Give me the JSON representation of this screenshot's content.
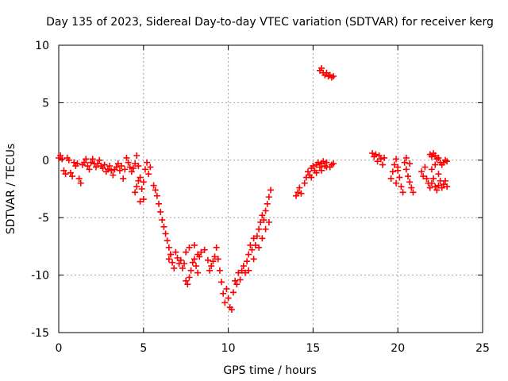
{
  "chart_data": {
    "type": "scatter",
    "title": "Day 135 of 2023, Sidereal Day-to-day VTEC variation (SDTVAR) for receiver kerg",
    "xlabel": "GPS time / hours",
    "ylabel": "SDTVAR / TECUs",
    "xlim": [
      0,
      25
    ],
    "ylim": [
      -15,
      10
    ],
    "x_ticks": [
      0,
      5,
      10,
      15,
      20,
      25
    ],
    "x_tick_labels": [
      "0",
      "5",
      "10",
      "15",
      "20",
      "25"
    ],
    "y_ticks": [
      10,
      5,
      0,
      -5,
      -10,
      -15
    ],
    "y_tick_labels": [
      "10",
      "5",
      "0",
      "-5",
      "-10",
      "-15"
    ],
    "grid": true,
    "marker": "+",
    "series_color": "#ff0000",
    "series": [
      {
        "name": "SDTVAR",
        "points": [
          [
            0.0,
            0.2
          ],
          [
            0.1,
            0.4
          ],
          [
            0.2,
            0.1
          ],
          [
            0.3,
            -0.9
          ],
          [
            0.4,
            -1.2
          ],
          [
            0.5,
            0.2
          ],
          [
            0.6,
            0.0
          ],
          [
            0.7,
            -1.1
          ],
          [
            0.8,
            -1.4
          ],
          [
            0.9,
            -0.2
          ],
          [
            1.0,
            -0.5
          ],
          [
            1.1,
            -0.3
          ],
          [
            1.2,
            -1.6
          ],
          [
            1.3,
            -2.0
          ],
          [
            1.4,
            -0.4
          ],
          [
            1.5,
            -0.2
          ],
          [
            1.6,
            0.1
          ],
          [
            1.7,
            -0.5
          ],
          [
            1.8,
            -0.8
          ],
          [
            1.9,
            -0.2
          ],
          [
            2.0,
            0.1
          ],
          [
            2.1,
            -0.3
          ],
          [
            2.2,
            -0.6
          ],
          [
            2.3,
            -0.3
          ],
          [
            2.4,
            0.0
          ],
          [
            2.5,
            -0.5
          ],
          [
            2.6,
            -0.7
          ],
          [
            2.7,
            -0.4
          ],
          [
            2.8,
            -1.0
          ],
          [
            2.9,
            -0.8
          ],
          [
            3.0,
            -0.5
          ],
          [
            3.1,
            -0.9
          ],
          [
            3.2,
            -1.3
          ],
          [
            3.3,
            -0.8
          ],
          [
            3.4,
            -0.6
          ],
          [
            3.5,
            -0.3
          ],
          [
            3.6,
            -0.9
          ],
          [
            3.7,
            -0.5
          ],
          [
            3.8,
            -1.6
          ],
          [
            3.9,
            -0.8
          ],
          [
            4.0,
            0.2
          ],
          [
            4.1,
            -0.2
          ],
          [
            4.2,
            -0.6
          ],
          [
            4.3,
            -1.0
          ],
          [
            4.4,
            -0.7
          ],
          [
            4.5,
            -0.3
          ],
          [
            4.6,
            0.4
          ],
          [
            4.7,
            -0.5
          ],
          [
            4.8,
            -1.5
          ],
          [
            4.9,
            -2.5
          ],
          [
            5.0,
            -3.4
          ],
          [
            5.1,
            -0.8
          ],
          [
            5.2,
            -0.2
          ],
          [
            5.3,
            -1.2
          ],
          [
            5.4,
            -0.6
          ],
          [
            4.5,
            -2.8
          ],
          [
            4.6,
            -2.3
          ],
          [
            4.7,
            -1.8
          ],
          [
            4.8,
            -3.6
          ],
          [
            5.0,
            -1.9
          ],
          [
            5.6,
            -2.2
          ],
          [
            5.7,
            -2.6
          ],
          [
            5.8,
            -3.1
          ],
          [
            5.9,
            -3.8
          ],
          [
            6.0,
            -4.5
          ],
          [
            6.1,
            -5.2
          ],
          [
            6.2,
            -5.8
          ],
          [
            6.3,
            -6.4
          ],
          [
            6.4,
            -7.0
          ],
          [
            6.5,
            -7.6
          ],
          [
            6.6,
            -8.2
          ],
          [
            6.7,
            -8.9
          ],
          [
            6.8,
            -9.4
          ],
          [
            6.9,
            -8.0
          ],
          [
            6.5,
            -8.6
          ],
          [
            6.6,
            -8.2
          ],
          [
            7.0,
            -8.5
          ],
          [
            7.1,
            -9.0
          ],
          [
            7.2,
            -8.7
          ],
          [
            7.3,
            -9.4
          ],
          [
            7.4,
            -9.0
          ],
          [
            7.5,
            -10.5
          ],
          [
            7.6,
            -10.8
          ],
          [
            7.7,
            -10.2
          ],
          [
            7.8,
            -9.6
          ],
          [
            7.9,
            -8.9
          ],
          [
            8.0,
            -8.6
          ],
          [
            8.1,
            -9.2
          ],
          [
            8.2,
            -9.8
          ],
          [
            8.3,
            -8.4
          ],
          [
            7.5,
            -8.0
          ],
          [
            7.7,
            -7.6
          ],
          [
            8.0,
            -7.4
          ],
          [
            8.2,
            -8.2
          ],
          [
            8.4,
            -8.0
          ],
          [
            8.6,
            -7.8
          ],
          [
            8.8,
            -8.7
          ],
          [
            8.9,
            -9.6
          ],
          [
            9.0,
            -9.2
          ],
          [
            9.1,
            -8.8
          ],
          [
            9.2,
            -8.4
          ],
          [
            9.3,
            -7.6
          ],
          [
            9.4,
            -8.6
          ],
          [
            9.5,
            -9.6
          ],
          [
            9.6,
            -10.6
          ],
          [
            9.7,
            -11.6
          ],
          [
            9.8,
            -12.4
          ],
          [
            9.9,
            -11.2
          ],
          [
            10.0,
            -12.0
          ],
          [
            10.1,
            -12.8
          ],
          [
            10.2,
            -13.0
          ],
          [
            10.3,
            -11.5
          ],
          [
            10.4,
            -10.5
          ],
          [
            10.5,
            -10.8
          ],
          [
            10.6,
            -9.8
          ],
          [
            10.7,
            -10.4
          ],
          [
            10.8,
            -9.6
          ],
          [
            10.9,
            -9.2
          ],
          [
            11.0,
            -9.8
          ],
          [
            11.1,
            -8.8
          ],
          [
            11.2,
            -8.2
          ],
          [
            11.3,
            -7.4
          ],
          [
            11.4,
            -7.8
          ],
          [
            11.5,
            -6.8
          ],
          [
            11.6,
            -7.4
          ],
          [
            11.7,
            -6.6
          ],
          [
            11.8,
            -6.0
          ],
          [
            11.9,
            -5.4
          ],
          [
            12.0,
            -4.8
          ],
          [
            12.1,
            -5.2
          ],
          [
            12.2,
            -4.4
          ],
          [
            12.3,
            -3.8
          ],
          [
            12.4,
            -3.2
          ],
          [
            12.5,
            -2.6
          ],
          [
            12.2,
            -6.0
          ],
          [
            12.4,
            -5.4
          ],
          [
            12.0,
            -6.8
          ],
          [
            11.8,
            -7.6
          ],
          [
            11.5,
            -8.6
          ],
          [
            11.2,
            -9.6
          ],
          [
            14.0,
            -3.1
          ],
          [
            14.1,
            -2.8
          ],
          [
            14.2,
            -2.4
          ],
          [
            14.3,
            -2.9
          ],
          [
            14.5,
            -2.0
          ],
          [
            14.6,
            -1.5
          ],
          [
            14.7,
            -1.0
          ],
          [
            14.8,
            -1.3
          ],
          [
            14.9,
            -0.7
          ],
          [
            15.0,
            -0.5
          ],
          [
            15.1,
            -0.9
          ],
          [
            15.2,
            -0.4
          ],
          [
            15.3,
            -0.2
          ],
          [
            15.4,
            -0.6
          ],
          [
            15.5,
            -0.3
          ],
          [
            15.6,
            -0.1
          ],
          [
            15.7,
            -0.5
          ],
          [
            15.8,
            -0.2
          ],
          [
            16.0,
            -0.6
          ],
          [
            16.1,
            -0.4
          ],
          [
            16.2,
            -0.3
          ],
          [
            14.9,
            -1.5
          ],
          [
            15.2,
            -1.1
          ],
          [
            15.5,
            -0.9
          ],
          [
            15.8,
            -0.6
          ],
          [
            15.4,
            7.8
          ],
          [
            15.5,
            8.0
          ],
          [
            15.6,
            7.6
          ],
          [
            15.7,
            7.4
          ],
          [
            15.8,
            7.6
          ],
          [
            15.9,
            7.3
          ],
          [
            16.0,
            7.4
          ],
          [
            16.1,
            7.2
          ],
          [
            16.2,
            7.3
          ],
          [
            18.5,
            0.6
          ],
          [
            18.6,
            0.3
          ],
          [
            18.7,
            0.5
          ],
          [
            18.8,
            -0.1
          ],
          [
            18.9,
            0.4
          ],
          [
            19.0,
            0.1
          ],
          [
            19.1,
            -0.4
          ],
          [
            19.2,
            0.2
          ],
          [
            19.6,
            -1.6
          ],
          [
            19.7,
            -1.0
          ],
          [
            19.8,
            -0.4
          ],
          [
            19.9,
            0.1
          ],
          [
            20.0,
            -0.6
          ],
          [
            20.1,
            -1.5
          ],
          [
            20.2,
            -2.3
          ],
          [
            20.3,
            -2.8
          ],
          [
            19.9,
            -2.0
          ],
          [
            20.0,
            -0.9
          ],
          [
            20.4,
            -0.2
          ],
          [
            20.5,
            -0.8
          ],
          [
            20.6,
            -1.4
          ],
          [
            20.7,
            -1.9
          ],
          [
            20.8,
            -2.4
          ],
          [
            20.9,
            -2.8
          ],
          [
            20.5,
            0.2
          ],
          [
            20.7,
            -0.3
          ],
          [
            21.4,
            -1.0
          ],
          [
            21.5,
            -1.4
          ],
          [
            21.6,
            -0.6
          ],
          [
            21.7,
            -1.6
          ],
          [
            21.8,
            -2.0
          ],
          [
            21.9,
            -2.4
          ],
          [
            22.0,
            -2.0
          ],
          [
            22.1,
            -1.6
          ],
          [
            22.2,
            -2.3
          ],
          [
            22.3,
            -2.6
          ],
          [
            22.4,
            -2.2
          ],
          [
            22.5,
            -1.8
          ],
          [
            22.6,
            -2.4
          ],
          [
            22.7,
            -2.1
          ],
          [
            22.8,
            -1.8
          ],
          [
            22.9,
            -2.3
          ],
          [
            21.9,
            0.5
          ],
          [
            22.0,
            0.3
          ],
          [
            22.1,
            0.6
          ],
          [
            22.2,
            0.4
          ],
          [
            22.3,
            0.1
          ],
          [
            22.4,
            0.2
          ],
          [
            22.5,
            -0.2
          ],
          [
            22.6,
            -0.4
          ],
          [
            22.7,
            -0.2
          ],
          [
            22.8,
            0.0
          ],
          [
            22.9,
            -0.1
          ],
          [
            22.0,
            -0.8
          ],
          [
            22.2,
            -0.4
          ],
          [
            22.4,
            -1.2
          ]
        ]
      }
    ]
  }
}
